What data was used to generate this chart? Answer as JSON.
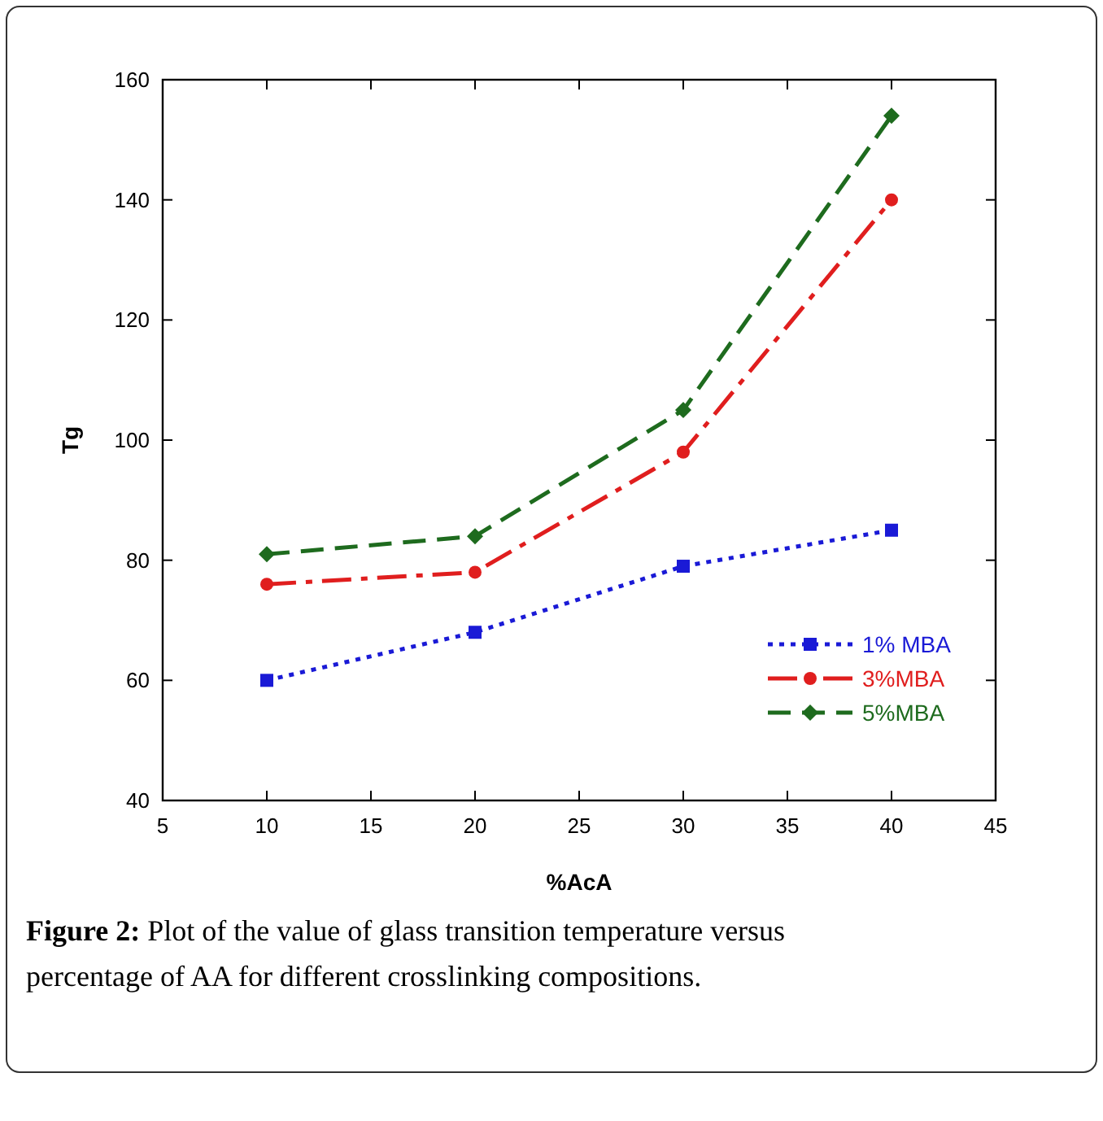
{
  "chart_data": {
    "type": "line",
    "xlabel": "%AcA",
    "ylabel": "Tg",
    "x": [
      10,
      20,
      30,
      40
    ],
    "series": [
      {
        "name": "1% MBA",
        "color": "#1a1ad6",
        "values": [
          60,
          68,
          79,
          85
        ],
        "marker": "square",
        "line_style": "dotted"
      },
      {
        "name": "3%MBA",
        "color": "#e01e1e",
        "values": [
          76,
          78,
          98,
          140
        ],
        "marker": "circle",
        "line_style": "dashdot"
      },
      {
        "name": "5%MBA",
        "color": "#1e6b1e",
        "values": [
          81,
          84,
          105,
          154
        ],
        "marker": "diamond",
        "line_style": "dashed"
      }
    ],
    "xlim": [
      5,
      45
    ],
    "xticks": [
      5,
      10,
      15,
      20,
      25,
      30,
      35,
      40,
      45
    ],
    "ylim": [
      40,
      160
    ],
    "yticks": [
      40,
      60,
      80,
      100,
      120,
      140,
      160
    ],
    "grid": false,
    "legend": "bottom right",
    "annotations": [
      "Figure 2: Plot of the value of glass transition temperature versus percentage of AA for different crosslinking compositions."
    ]
  }
}
